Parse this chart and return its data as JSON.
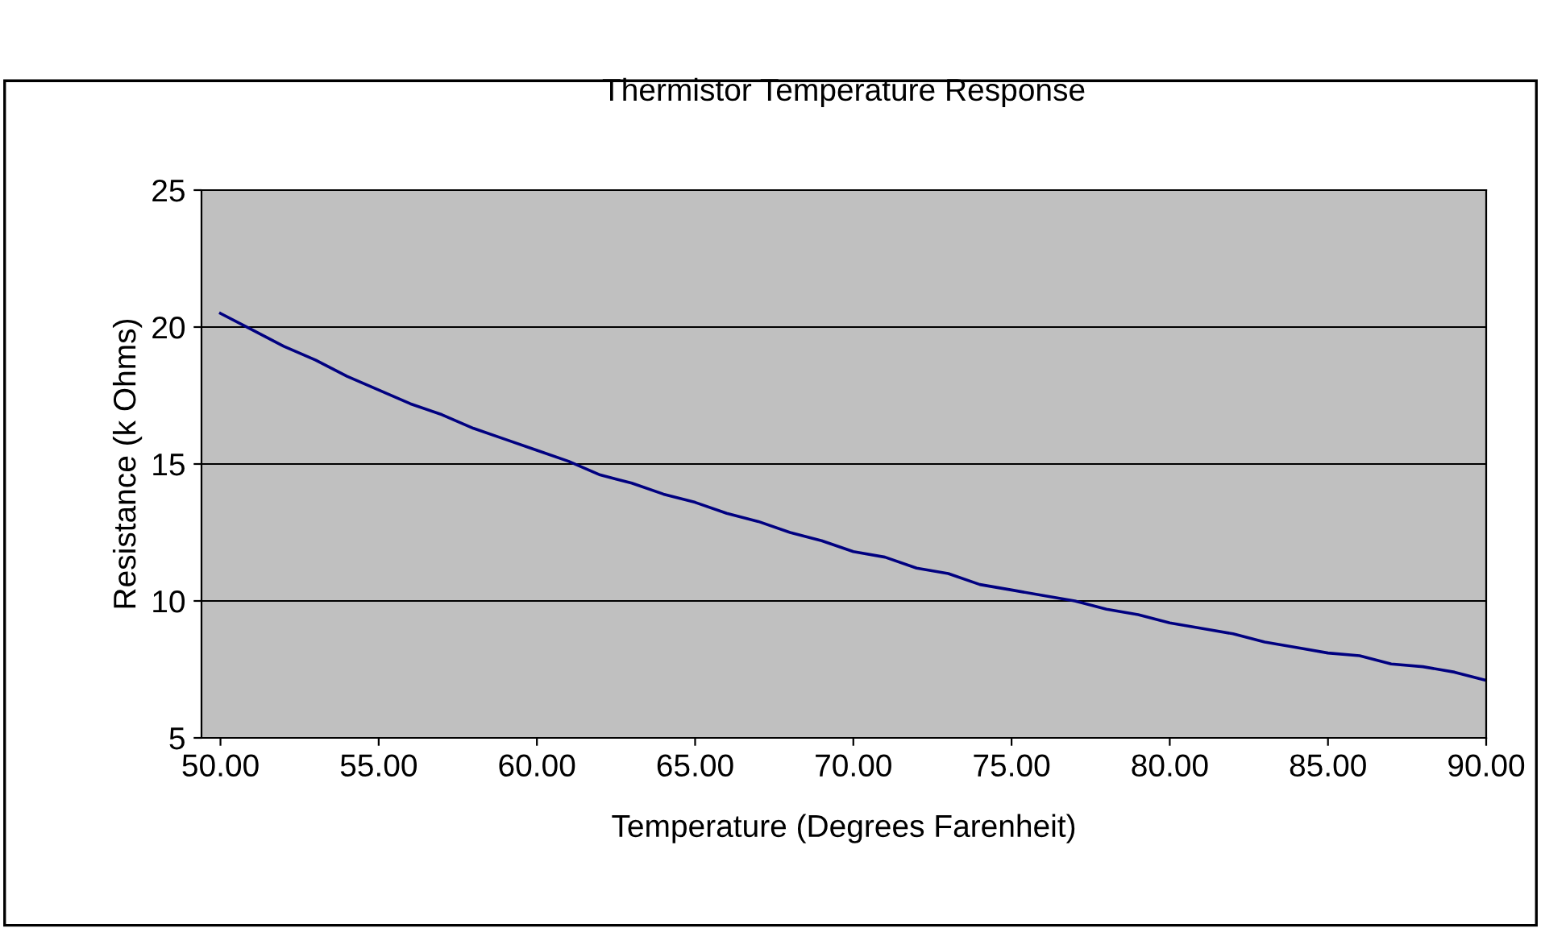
{
  "chart_data": {
    "type": "line",
    "title": "Thermistor Temperature Response",
    "xlabel": "Temperature (Degrees Farenheit)",
    "ylabel": "Resistance (k Ohms)",
    "x": [
      50,
      51,
      52,
      53,
      54,
      55,
      56,
      57,
      58,
      59,
      60,
      61,
      62,
      63,
      64,
      65,
      66,
      67,
      68,
      69,
      70,
      71,
      72,
      73,
      74,
      75,
      76,
      77,
      78,
      79,
      80,
      81,
      82,
      83,
      84,
      85,
      86,
      87,
      88,
      89,
      90
    ],
    "series": [
      {
        "color": "#000080",
        "values": [
          20.5,
          19.9,
          19.3,
          18.8,
          18.2,
          17.7,
          17.2,
          16.8,
          16.3,
          15.9,
          15.5,
          15.1,
          14.6,
          14.3,
          13.9,
          13.6,
          13.2,
          12.9,
          12.5,
          12.2,
          11.8,
          11.6,
          11.2,
          11.0,
          10.6,
          10.4,
          10.2,
          10.0,
          9.7,
          9.5,
          9.2,
          9.0,
          8.8,
          8.5,
          8.3,
          8.1,
          8.0,
          7.7,
          7.6,
          7.4,
          7.1
        ]
      }
    ],
    "xlim": [
      49.4,
      90
    ],
    "xticks": [
      {
        "value": 50,
        "label": "50.00"
      },
      {
        "value": 55,
        "label": "55.00"
      },
      {
        "value": 60,
        "label": "60.00"
      },
      {
        "value": 65,
        "label": "65.00"
      },
      {
        "value": 70,
        "label": "70.00"
      },
      {
        "value": 75,
        "label": "75.00"
      },
      {
        "value": 80,
        "label": "80.00"
      },
      {
        "value": 85,
        "label": "85.00"
      },
      {
        "value": 90,
        "label": "90.00"
      }
    ],
    "ylim": [
      5,
      25
    ],
    "yticks": [
      5,
      10,
      15,
      20,
      25
    ],
    "grid": "y",
    "legend": false,
    "marker": "none",
    "line_style": "solid"
  }
}
